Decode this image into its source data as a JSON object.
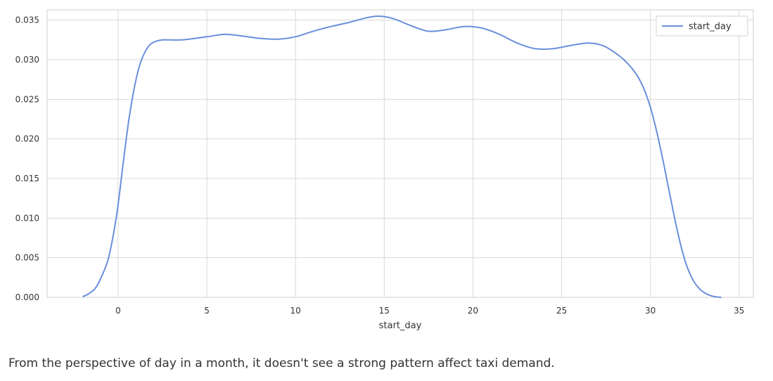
{
  "chart_data": {
    "type": "line",
    "title": "",
    "xlabel": "start_day",
    "ylabel": "",
    "xlim": [
      -4,
      35.8
    ],
    "ylim": [
      0.0,
      0.0363
    ],
    "xticks": [
      0,
      5,
      10,
      15,
      20,
      25,
      30,
      35
    ],
    "xtick_labels": [
      "0",
      "5",
      "10",
      "15",
      "20",
      "25",
      "30",
      "35"
    ],
    "yticks": [
      0.0,
      0.005,
      0.01,
      0.015,
      0.02,
      0.025,
      0.03,
      0.035
    ],
    "ytick_labels": [
      "0.000",
      "0.005",
      "0.010",
      "0.015",
      "0.020",
      "0.025",
      "0.030",
      "0.035"
    ],
    "grid": true,
    "legend_position": "top-right",
    "colors": {
      "line": "#6a8fdc",
      "grid": "#d8d8d8",
      "frame": "#cfcfcf"
    },
    "series": [
      {
        "name": "start_day",
        "x": [
          -2.0,
          -1.7,
          -1.3,
          -1.0,
          -0.6,
          -0.3,
          0.0,
          0.3,
          0.6,
          0.9,
          1.2,
          1.5,
          1.8,
          2.1,
          2.5,
          3.0,
          3.5,
          4.0,
          5.0,
          6.0,
          7.0,
          8.0,
          9.0,
          10.0,
          11.0,
          12.0,
          13.0,
          14.0,
          14.7,
          15.5,
          16.5,
          17.5,
          18.5,
          19.5,
          20.5,
          21.5,
          22.5,
          23.5,
          24.5,
          25.5,
          26.5,
          27.3,
          28.0,
          28.6,
          29.2,
          29.6,
          30.0,
          30.4,
          30.8,
          31.2,
          31.6,
          32.0,
          32.4,
          32.8,
          33.2,
          33.6,
          34.0
        ],
        "y": [
          0.0001,
          0.0004,
          0.0011,
          0.0023,
          0.0045,
          0.0075,
          0.0117,
          0.0172,
          0.0223,
          0.0263,
          0.0292,
          0.0309,
          0.0319,
          0.0323,
          0.0325,
          0.0325,
          0.0325,
          0.0326,
          0.0329,
          0.0332,
          0.033,
          0.0327,
          0.0326,
          0.0329,
          0.0336,
          0.0342,
          0.0347,
          0.0353,
          0.0355,
          0.0352,
          0.0343,
          0.0336,
          0.0338,
          0.0342,
          0.034,
          0.0332,
          0.0321,
          0.0314,
          0.0314,
          0.0318,
          0.0321,
          0.0318,
          0.0309,
          0.0298,
          0.0282,
          0.0265,
          0.024,
          0.0205,
          0.0163,
          0.0118,
          0.0076,
          0.0043,
          0.0022,
          0.001,
          0.0004,
          0.0001,
          0.0
        ]
      }
    ]
  },
  "caption": "From the perspective of day in a month, it doesn't see a strong pattern affect taxi demand."
}
